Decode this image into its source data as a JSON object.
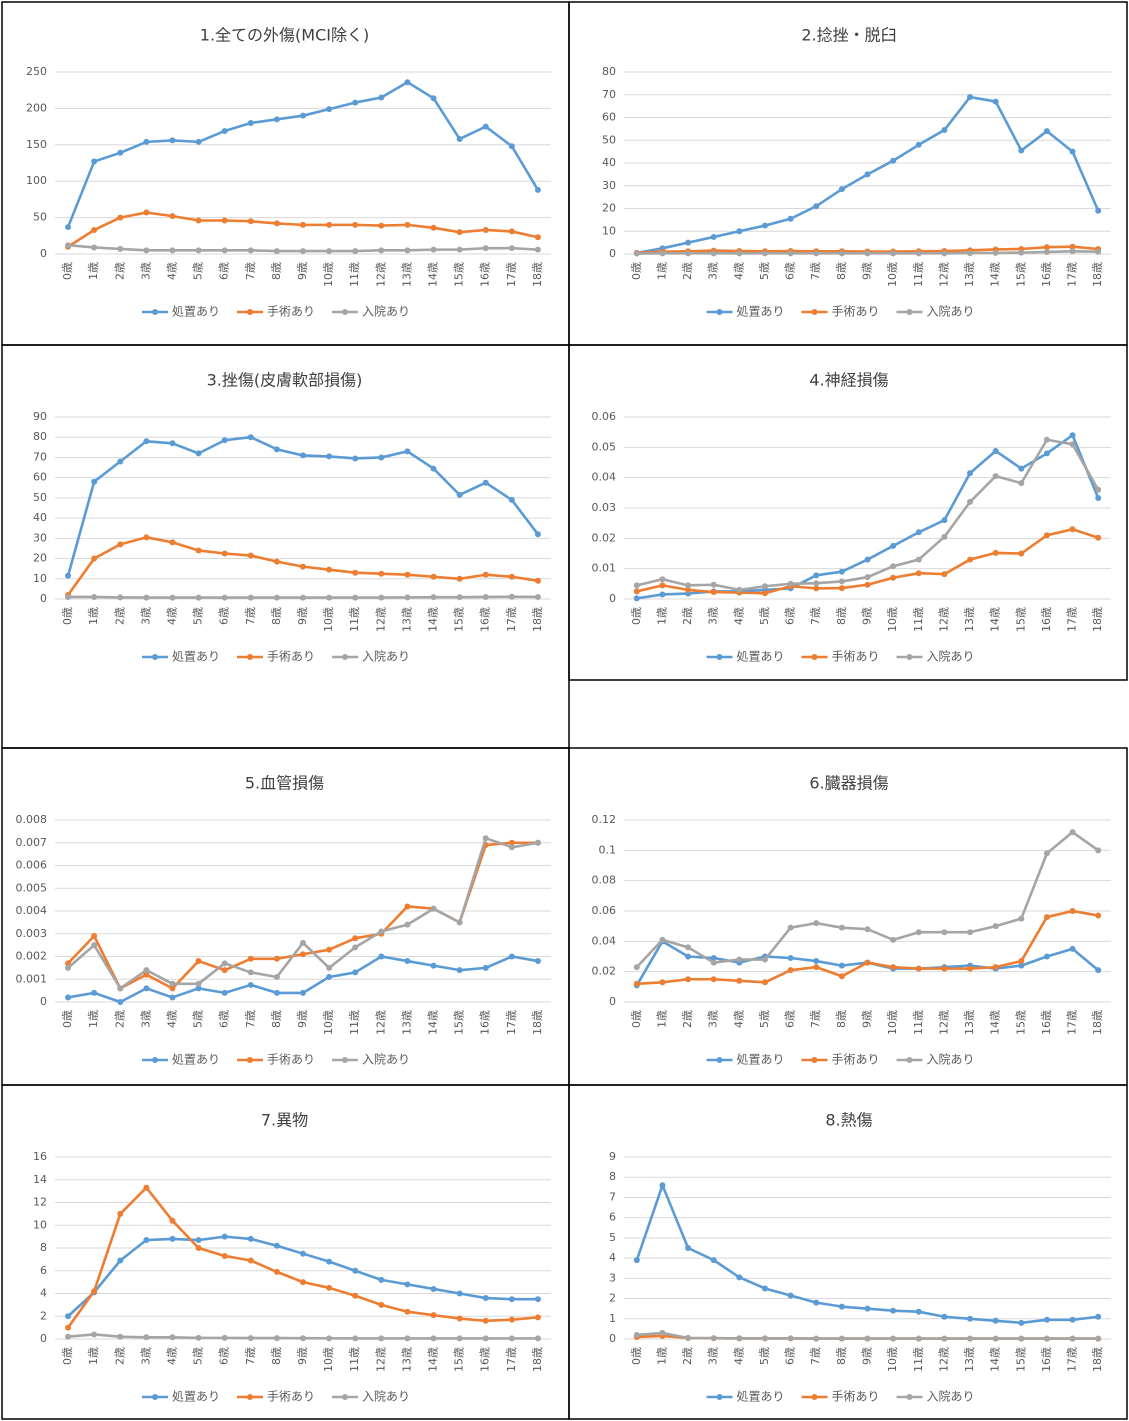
{
  "chart_data": [
    {
      "type": "line",
      "title": "1.全ての外傷(MCI除く)",
      "categories": [
        "0歳",
        "1歳",
        "2歳",
        "3歳",
        "4歳",
        "5歳",
        "6歳",
        "7歳",
        "8歳",
        "9歳",
        "10歳",
        "11歳",
        "12歳",
        "13歳",
        "14歳",
        "15歳",
        "16歳",
        "17歳",
        "18歳"
      ],
      "series": [
        {
          "name": "処置あり",
          "color": "#5b9bd5",
          "values": [
            37,
            127,
            139,
            154,
            156,
            154,
            169,
            180,
            185,
            190,
            199,
            208,
            215,
            236,
            214,
            158,
            175,
            148,
            88
          ]
        },
        {
          "name": "手術あり",
          "color": "#ed7d31",
          "values": [
            10,
            33,
            50,
            57,
            52,
            46,
            46,
            45,
            42,
            40,
            40,
            40,
            39,
            40,
            36,
            30,
            33,
            31,
            23
          ]
        },
        {
          "name": "入院あり",
          "color": "#a5a5a5",
          "values": [
            12,
            9,
            7,
            5,
            5,
            5,
            5,
            5,
            4,
            4,
            4,
            4,
            5,
            5,
            6,
            6,
            8,
            8,
            6
          ]
        }
      ],
      "ylim": [
        0,
        250
      ],
      "yticks": [
        0,
        50,
        100,
        150,
        200,
        250
      ],
      "grid": true,
      "legend": "bottom"
    },
    {
      "type": "line",
      "title": "2.捻挫・脱臼",
      "categories": [
        "0歳",
        "1歳",
        "2歳",
        "3歳",
        "4歳",
        "5歳",
        "6歳",
        "7歳",
        "8歳",
        "9歳",
        "10歳",
        "11歳",
        "12歳",
        "13歳",
        "14歳",
        "15歳",
        "16歳",
        "17歳",
        "18歳"
      ],
      "series": [
        {
          "name": "処置あり",
          "color": "#5b9bd5",
          "values": [
            0.5,
            2.5,
            5,
            7.5,
            10,
            12.5,
            15.5,
            21,
            28.5,
            35,
            41,
            48,
            54.5,
            69,
            67,
            45.5,
            54,
            45,
            19
          ]
        },
        {
          "name": "手術あり",
          "color": "#ed7d31",
          "values": [
            0.5,
            1,
            1.2,
            1.5,
            1.3,
            1.2,
            1.3,
            1.2,
            1.2,
            1.1,
            1.1,
            1.2,
            1.3,
            1.6,
            2,
            2.2,
            3,
            3.2,
            2.2
          ]
        },
        {
          "name": "入院あり",
          "color": "#a5a5a5",
          "values": [
            0.2,
            0.3,
            0.3,
            0.3,
            0.3,
            0.3,
            0.3,
            0.3,
            0.3,
            0.3,
            0.3,
            0.3,
            0.3,
            0.4,
            0.5,
            0.6,
            0.9,
            1.2,
            1
          ]
        }
      ],
      "ylim": [
        0,
        80
      ],
      "yticks": [
        0,
        10,
        20,
        30,
        40,
        50,
        60,
        70,
        80
      ],
      "grid": true,
      "legend": "bottom"
    },
    {
      "type": "line",
      "title": "3.挫傷(皮膚軟部損傷)",
      "categories": [
        "0歳",
        "1歳",
        "2歳",
        "3歳",
        "4歳",
        "5歳",
        "6歳",
        "7歳",
        "8歳",
        "9歳",
        "10歳",
        "11歳",
        "12歳",
        "13歳",
        "14歳",
        "15歳",
        "16歳",
        "17歳",
        "18歳"
      ],
      "series": [
        {
          "name": "処置あり",
          "color": "#5b9bd5",
          "values": [
            11.5,
            58,
            68,
            78,
            77,
            72,
            78.5,
            80,
            74,
            71,
            70.5,
            69.5,
            70,
            73,
            64.5,
            51.5,
            57.5,
            49,
            32
          ]
        },
        {
          "name": "手術あり",
          "color": "#ed7d31",
          "values": [
            2,
            20,
            27,
            30.5,
            28,
            24,
            22.5,
            21.5,
            18.5,
            16,
            14.5,
            13,
            12.5,
            12,
            11,
            10,
            12,
            11,
            9
          ]
        },
        {
          "name": "入院あり",
          "color": "#a5a5a5",
          "values": [
            1,
            1,
            0.8,
            0.7,
            0.7,
            0.7,
            0.7,
            0.7,
            0.7,
            0.7,
            0.7,
            0.7,
            0.7,
            0.8,
            0.9,
            0.9,
            1,
            1.1,
            1
          ]
        }
      ],
      "ylim": [
        0,
        90
      ],
      "yticks": [
        0,
        10,
        20,
        30,
        40,
        50,
        60,
        70,
        80,
        90
      ],
      "grid": true,
      "legend": "bottom"
    },
    {
      "type": "line",
      "title": "4.神経損傷",
      "categories": [
        "0歳",
        "1歳",
        "2歳",
        "3歳",
        "4歳",
        "5歳",
        "6歳",
        "7歳",
        "8歳",
        "9歳",
        "10歳",
        "11歳",
        "12歳",
        "13歳",
        "14歳",
        "15歳",
        "16歳",
        "17歳",
        "18歳"
      ],
      "series": [
        {
          "name": "処置あり",
          "color": "#5b9bd5",
          "values": [
            0.0002,
            0.0015,
            0.0018,
            0.0025,
            0.0025,
            0.003,
            0.0035,
            0.0078,
            0.009,
            0.013,
            0.0175,
            0.022,
            0.026,
            0.0415,
            0.0488,
            0.043,
            0.048,
            0.054,
            0.0333
          ]
        },
        {
          "name": "手術あり",
          "color": "#ed7d31",
          "values": [
            0.0025,
            0.0045,
            0.003,
            0.0023,
            0.0021,
            0.0019,
            0.0042,
            0.0035,
            0.0036,
            0.0047,
            0.007,
            0.0085,
            0.0082,
            0.013,
            0.0152,
            0.015,
            0.021,
            0.023,
            0.0202
          ]
        },
        {
          "name": "入院あり",
          "color": "#a5a5a5",
          "values": [
            0.0045,
            0.0065,
            0.0045,
            0.0047,
            0.003,
            0.0042,
            0.005,
            0.0052,
            0.0058,
            0.0072,
            0.0108,
            0.013,
            0.0205,
            0.032,
            0.0405,
            0.0382,
            0.0525,
            0.051,
            0.036
          ]
        }
      ],
      "ylim": [
        0,
        0.06
      ],
      "yticks": [
        0,
        0.01,
        0.02,
        0.03,
        0.04,
        0.05,
        0.06
      ],
      "grid": true,
      "legend": "bottom"
    },
    {
      "type": "line",
      "title": "5.血管損傷",
      "categories": [
        "0歳",
        "1歳",
        "2歳",
        "3歳",
        "4歳",
        "5歳",
        "6歳",
        "7歳",
        "8歳",
        "9歳",
        "10歳",
        "11歳",
        "12歳",
        "13歳",
        "14歳",
        "15歳",
        "16歳",
        "17歳",
        "18歳"
      ],
      "series": [
        {
          "name": "処置あり",
          "color": "#5b9bd5",
          "values": [
            0.0002,
            0.0004,
            0,
            0.0006,
            0.0002,
            0.0006,
            0.0004,
            0.00075,
            0.0004,
            0.0004,
            0.0011,
            0.0013,
            0.002,
            0.0018,
            0.0016,
            0.0014,
            0.0015,
            0.002,
            0.0018
          ]
        },
        {
          "name": "手術あり",
          "color": "#ed7d31",
          "values": [
            0.0017,
            0.0029,
            0.0006,
            0.0012,
            0.0006,
            0.0018,
            0.0014,
            0.0019,
            0.0019,
            0.0021,
            0.0023,
            0.0028,
            0.003,
            0.0042,
            0.0041,
            0.0035,
            0.0069,
            0.007,
            0.007
          ]
        },
        {
          "name": "入院あり",
          "color": "#a5a5a5",
          "values": [
            0.0015,
            0.0025,
            0.0006,
            0.0014,
            0.0008,
            0.0008,
            0.0017,
            0.0013,
            0.0011,
            0.0026,
            0.0015,
            0.0024,
            0.0031,
            0.0034,
            0.0041,
            0.0035,
            0.0072,
            0.0068,
            0.007
          ]
        }
      ],
      "ylim": [
        0,
        0.008
      ],
      "yticks": [
        0,
        0.001,
        0.002,
        0.003,
        0.004,
        0.005,
        0.006,
        0.007,
        0.008
      ],
      "grid": true,
      "legend": "bottom"
    },
    {
      "type": "line",
      "title": "6.臓器損傷",
      "categories": [
        "0歳",
        "1歳",
        "2歳",
        "3歳",
        "4歳",
        "5歳",
        "6歳",
        "7歳",
        "8歳",
        "9歳",
        "10歳",
        "11歳",
        "12歳",
        "13歳",
        "14歳",
        "15歳",
        "16歳",
        "17歳",
        "18歳"
      ],
      "series": [
        {
          "name": "処置あり",
          "color": "#5b9bd5",
          "values": [
            0.011,
            0.04,
            0.03,
            0.029,
            0.026,
            0.03,
            0.029,
            0.027,
            0.024,
            0.026,
            0.022,
            0.022,
            0.023,
            0.024,
            0.022,
            0.024,
            0.03,
            0.035,
            0.021
          ]
        },
        {
          "name": "手術あり",
          "color": "#ed7d31",
          "values": [
            0.012,
            0.013,
            0.015,
            0.015,
            0.014,
            0.013,
            0.021,
            0.023,
            0.017,
            0.026,
            0.023,
            0.022,
            0.022,
            0.022,
            0.023,
            0.027,
            0.056,
            0.06,
            0.057
          ]
        },
        {
          "name": "入院あり",
          "color": "#a5a5a5",
          "values": [
            0.023,
            0.041,
            0.036,
            0.026,
            0.028,
            0.028,
            0.049,
            0.052,
            0.049,
            0.048,
            0.041,
            0.046,
            0.046,
            0.046,
            0.05,
            0.055,
            0.098,
            0.112,
            0.1
          ]
        }
      ],
      "ylim": [
        0,
        0.12
      ],
      "yticks": [
        0,
        0.02,
        0.04,
        0.06,
        0.08,
        0.1,
        0.12
      ],
      "grid": true,
      "legend": "bottom"
    },
    {
      "type": "line",
      "title": "7.異物",
      "categories": [
        "0歳",
        "1歳",
        "2歳",
        "3歳",
        "4歳",
        "5歳",
        "6歳",
        "7歳",
        "8歳",
        "9歳",
        "10歳",
        "11歳",
        "12歳",
        "13歳",
        "14歳",
        "15歳",
        "16歳",
        "17歳",
        "18歳"
      ],
      "series": [
        {
          "name": "処置あり",
          "color": "#5b9bd5",
          "values": [
            2,
            4.1,
            6.9,
            8.7,
            8.8,
            8.7,
            9,
            8.8,
            8.2,
            7.5,
            6.8,
            6,
            5.2,
            4.8,
            4.4,
            4,
            3.6,
            3.5,
            3.5
          ]
        },
        {
          "name": "手術あり",
          "color": "#ed7d31",
          "values": [
            1,
            4.2,
            11,
            13.3,
            10.4,
            8,
            7.3,
            6.9,
            5.9,
            5,
            4.5,
            3.8,
            3,
            2.4,
            2.1,
            1.8,
            1.6,
            1.7,
            1.9
          ]
        },
        {
          "name": "入院あり",
          "color": "#a5a5a5",
          "values": [
            0.2,
            0.4,
            0.2,
            0.15,
            0.15,
            0.1,
            0.1,
            0.08,
            0.08,
            0.07,
            0.06,
            0.05,
            0.05,
            0.05,
            0.05,
            0.05,
            0.05,
            0.05,
            0.05
          ]
        }
      ],
      "ylim": [
        0,
        16
      ],
      "yticks": [
        0,
        2,
        4,
        6,
        8,
        10,
        12,
        14,
        16
      ],
      "grid": true,
      "legend": "bottom"
    },
    {
      "type": "line",
      "title": "8.熱傷",
      "categories": [
        "0歳",
        "1歳",
        "2歳",
        "3歳",
        "4歳",
        "5歳",
        "6歳",
        "7歳",
        "8歳",
        "9歳",
        "10歳",
        "11歳",
        "12歳",
        "13歳",
        "14歳",
        "15歳",
        "16歳",
        "17歳",
        "18歳"
      ],
      "series": [
        {
          "name": "処置あり",
          "color": "#5b9bd5",
          "values": [
            3.9,
            7.6,
            4.5,
            3.9,
            3.05,
            2.5,
            2.15,
            1.8,
            1.6,
            1.5,
            1.4,
            1.35,
            1.1,
            1,
            0.9,
            0.8,
            0.95,
            0.95,
            1.1
          ]
        },
        {
          "name": "手術あり",
          "color": "#ed7d31",
          "values": [
            0.1,
            0.15,
            0.05,
            0.04,
            0.03,
            0.03,
            0.03,
            0.02,
            0.02,
            0.02,
            0.02,
            0.02,
            0.02,
            0.02,
            0.02,
            0.02,
            0.02,
            0.02,
            0.02
          ]
        },
        {
          "name": "入院あり",
          "color": "#a5a5a5",
          "values": [
            0.2,
            0.3,
            0.05,
            0.04,
            0.03,
            0.03,
            0.03,
            0.02,
            0.02,
            0.02,
            0.02,
            0.02,
            0.02,
            0.02,
            0.02,
            0.02,
            0.02,
            0.02,
            0.02
          ]
        }
      ],
      "ylim": [
        0,
        9
      ],
      "yticks": [
        0,
        1,
        2,
        3,
        4,
        5,
        6,
        7,
        8,
        9
      ],
      "grid": true,
      "legend": "bottom"
    }
  ]
}
